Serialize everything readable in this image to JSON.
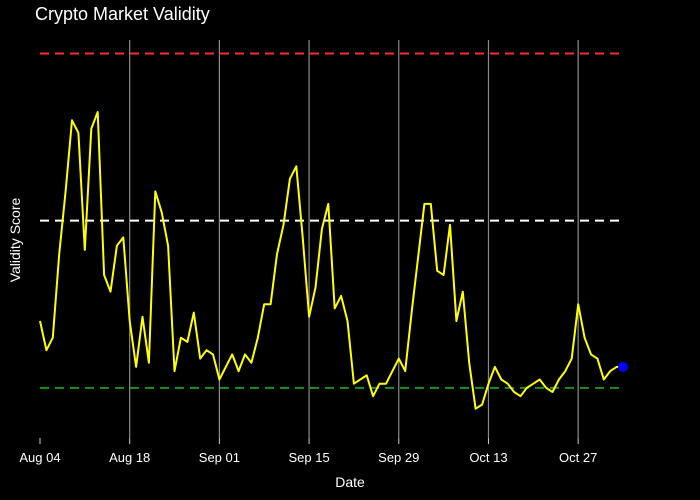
{
  "chart_data": {
    "type": "line",
    "title": "Crypto Market Validity",
    "xlabel": "Date",
    "ylabel": "Validity Score",
    "x_tick_labels": [
      "Aug 04",
      "Aug 18",
      "Sep 01",
      "Sep 15",
      "Sep 29",
      "Oct 13",
      "Oct 27"
    ],
    "start_date": "2024-08-04",
    "x_range_days": [
      0,
      91
    ],
    "ylim": [
      0,
      1
    ],
    "reference_lines": [
      {
        "value": 0.92,
        "color": "#ff2a2a",
        "style": "dashed"
      },
      {
        "value": 0.52,
        "color": "#ffffff",
        "style": "dashed"
      },
      {
        "value": 0.12,
        "color": "#1f8f1f",
        "style": "dashed"
      }
    ],
    "series": [
      {
        "color": "#ffff00",
        "values": [
          0.28,
          0.21,
          0.24,
          0.44,
          0.59,
          0.76,
          0.73,
          0.45,
          0.74,
          0.78,
          0.39,
          0.35,
          0.46,
          0.48,
          0.28,
          0.17,
          0.29,
          0.18,
          0.59,
          0.54,
          0.46,
          0.16,
          0.24,
          0.23,
          0.3,
          0.19,
          0.21,
          0.2,
          0.14,
          0.17,
          0.2,
          0.16,
          0.2,
          0.18,
          0.24,
          0.32,
          0.32,
          0.44,
          0.51,
          0.62,
          0.65,
          0.48,
          0.29,
          0.36,
          0.5,
          0.56,
          0.31,
          0.34,
          0.28,
          0.13,
          0.14,
          0.15,
          0.1,
          0.13,
          0.13,
          0.16,
          0.19,
          0.16,
          0.3,
          0.43,
          0.56,
          0.56,
          0.4,
          0.39,
          0.51,
          0.28,
          0.35,
          0.18,
          0.07,
          0.08,
          0.13,
          0.17,
          0.14,
          0.13,
          0.11,
          0.1,
          0.12,
          0.13,
          0.14,
          0.12,
          0.11,
          0.14,
          0.16,
          0.19,
          0.32,
          0.24,
          0.2,
          0.19,
          0.14,
          0.16,
          0.17,
          0.17
        ]
      }
    ],
    "highlight_point": {
      "day": 91,
      "value": 0.17,
      "color": "#0000ff"
    }
  }
}
